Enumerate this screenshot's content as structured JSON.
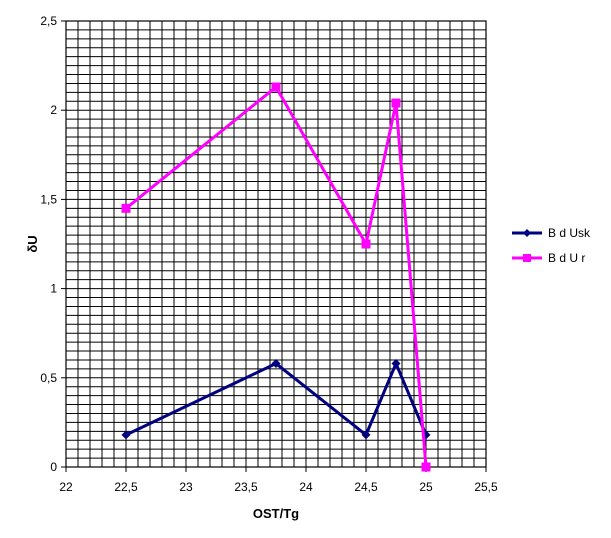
{
  "chart_data": {
    "type": "line",
    "xlabel": "OST/Tg",
    "ylabel": "δU",
    "xlim": [
      22,
      25.5
    ],
    "ylim": [
      0,
      2.5
    ],
    "x_ticks": [
      "22",
      "22,5",
      "23",
      "23,5",
      "24",
      "24,5",
      "25",
      "25,5"
    ],
    "y_ticks": [
      "0",
      "0,5",
      "1",
      "1,5",
      "2",
      "2,5"
    ],
    "grid": true,
    "legend_position": "right",
    "series": [
      {
        "name": "B d Usk",
        "color": "#000080",
        "marker": "diamond",
        "x": [
          22.5,
          23.75,
          24.5,
          24.75,
          25.0
        ],
        "y": [
          0.18,
          0.58,
          0.18,
          0.58,
          0.18
        ]
      },
      {
        "name": "B d U r",
        "color": "#ff00ff",
        "marker": "square",
        "x": [
          22.5,
          23.75,
          24.5,
          24.75,
          25.0
        ],
        "y": [
          1.45,
          2.13,
          1.25,
          2.04,
          0.0
        ]
      }
    ]
  }
}
